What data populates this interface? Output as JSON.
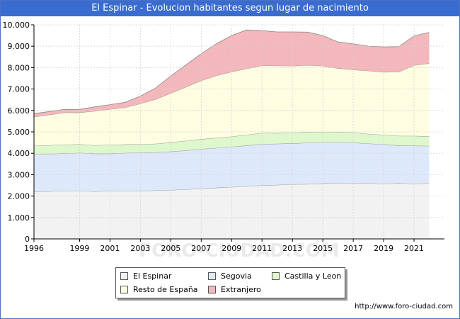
{
  "title": "El Espinar - Evolucion habitantes segun lugar de nacimiento",
  "footer": "http://www.foro-ciudad.com",
  "watermark": "FORO-CIUDAD.COM",
  "colors": {
    "title_bg": "#3a6ccf",
    "el_espinar": "#f2f2f2",
    "segovia": "#dde9fb",
    "castilla": "#dff7cc",
    "resto": "#fdfde2",
    "extranjero": "#f4b7bb"
  },
  "chart_data": {
    "type": "area",
    "stacked": true,
    "x": [
      1996,
      1998,
      1999,
      2000,
      2001,
      2002,
      2003,
      2004,
      2005,
      2006,
      2007,
      2008,
      2009,
      2010,
      2011,
      2012,
      2013,
      2014,
      2015,
      2016,
      2017,
      2018,
      2019,
      2020,
      2021,
      2022
    ],
    "xticks": [
      1996,
      1999,
      2001,
      2003,
      2005,
      2007,
      2009,
      2011,
      2013,
      2015,
      2017,
      2019,
      2021
    ],
    "xtick_labels": [
      "1996",
      "1999",
      "2001",
      "2003",
      "2005",
      "2007",
      "2009",
      "2011",
      "2013",
      "2015",
      "2017",
      "2019",
      "2021"
    ],
    "ylim": [
      0,
      10000
    ],
    "yticks": [
      0,
      1000,
      2000,
      3000,
      4000,
      5000,
      6000,
      7000,
      8000,
      9000,
      10000
    ],
    "ytick_labels": [
      "0",
      "1.000",
      "2.000",
      "3.000",
      "4.000",
      "5.000",
      "6.000",
      "7.000",
      "8.000",
      "9.000",
      "10.000"
    ],
    "grid": true,
    "legend_position": "bottom",
    "series": [
      {
        "name": "El Espinar",
        "color": "#f2f2f2",
        "values": [
          2200,
          2250,
          2250,
          2220,
          2240,
          2250,
          2250,
          2260,
          2280,
          2310,
          2350,
          2390,
          2420,
          2460,
          2500,
          2520,
          2550,
          2560,
          2590,
          2620,
          2600,
          2600,
          2580,
          2600,
          2580,
          2600
        ]
      },
      {
        "name": "Segovia",
        "color": "#dde9fb",
        "values": [
          1750,
          1740,
          1770,
          1760,
          1740,
          1760,
          1790,
          1780,
          1800,
          1820,
          1850,
          1860,
          1880,
          1900,
          1930,
          1920,
          1910,
          1930,
          1930,
          1900,
          1900,
          1850,
          1840,
          1760,
          1770,
          1740
        ]
      },
      {
        "name": "Castilla y Leon",
        "color": "#dff7cc",
        "values": [
          400,
          410,
          400,
          390,
          410,
          400,
          390,
          400,
          430,
          450,
          460,
          470,
          480,
          500,
          520,
          500,
          500,
          500,
          480,
          470,
          470,
          450,
          440,
          450,
          460,
          450
        ]
      },
      {
        "name": "Resto de España",
        "color": "#fdfde2",
        "values": [
          1350,
          1500,
          1480,
          1600,
          1670,
          1730,
          1890,
          2080,
          2290,
          2520,
          2730,
          2910,
          3020,
          3090,
          3150,
          3150,
          3120,
          3130,
          3080,
          2980,
          2930,
          2950,
          2930,
          2990,
          3300,
          3410
        ]
      },
      {
        "name": "Extranjero",
        "color": "#f4b7bb",
        "values": [
          150,
          150,
          150,
          200,
          210,
          240,
          350,
          530,
          810,
          1030,
          1260,
          1490,
          1700,
          1810,
          1630,
          1580,
          1590,
          1540,
          1420,
          1230,
          1210,
          1150,
          1180,
          1180,
          1370,
          1450
        ]
      }
    ]
  },
  "legend": {
    "items": [
      {
        "label": "El Espinar",
        "color": "#f2f2f2"
      },
      {
        "label": "Segovia",
        "color": "#dde9fb"
      },
      {
        "label": "Castilla y Leon",
        "color": "#dff7cc"
      },
      {
        "label": "Resto de España",
        "color": "#fdfde2"
      },
      {
        "label": "Extranjero",
        "color": "#f4b7bb"
      }
    ]
  }
}
